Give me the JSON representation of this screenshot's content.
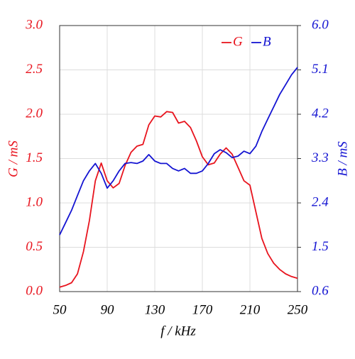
{
  "chart_data": {
    "type": "line",
    "xlabel": "f / kHz",
    "ylabel": "G / mS",
    "y2label": "B / mS",
    "x": [
      50,
      55,
      60,
      65,
      70,
      75,
      80,
      85,
      90,
      95,
      100,
      105,
      110,
      115,
      120,
      125,
      130,
      135,
      140,
      145,
      150,
      155,
      160,
      165,
      170,
      175,
      180,
      185,
      190,
      195,
      200,
      205,
      210,
      215,
      220,
      225,
      230,
      235,
      240,
      245,
      250
    ],
    "series": [
      {
        "name": "G",
        "color": "#e8141e",
        "axis": "y",
        "values": [
          0.05,
          0.07,
          0.1,
          0.2,
          0.45,
          0.8,
          1.25,
          1.45,
          1.25,
          1.17,
          1.22,
          1.42,
          1.57,
          1.64,
          1.66,
          1.88,
          1.98,
          1.97,
          2.03,
          2.02,
          1.9,
          1.92,
          1.85,
          1.7,
          1.52,
          1.43,
          1.45,
          1.55,
          1.62,
          1.55,
          1.4,
          1.25,
          1.2,
          0.9,
          0.6,
          0.43,
          0.32,
          0.25,
          0.2,
          0.17,
          0.15
        ]
      },
      {
        "name": "B",
        "color": "#1414d2",
        "axis": "y2",
        "values": [
          1.75,
          2.0,
          2.25,
          2.55,
          2.85,
          3.05,
          3.2,
          3.0,
          2.7,
          2.85,
          3.05,
          3.2,
          3.22,
          3.2,
          3.25,
          3.38,
          3.25,
          3.2,
          3.2,
          3.1,
          3.05,
          3.1,
          3.0,
          3.0,
          3.05,
          3.2,
          3.4,
          3.48,
          3.42,
          3.32,
          3.35,
          3.45,
          3.4,
          3.55,
          3.85,
          4.1,
          4.35,
          4.6,
          4.8,
          5.0,
          5.15
        ]
      }
    ],
    "xlim": [
      50,
      250
    ],
    "xticks": [
      50,
      90,
      130,
      170,
      210,
      250
    ],
    "ylim": [
      0,
      3
    ],
    "yticks": [
      {
        "value": 0,
        "label": "0.0"
      },
      0.5,
      {
        "value": 1,
        "label": "1.0"
      },
      1.5,
      {
        "value": 2,
        "label": "2.0"
      },
      2.5,
      {
        "value": 3,
        "label": "3.0"
      }
    ],
    "y2lim": [
      0.6,
      6
    ],
    "y2ticks": [
      0.6,
      1.5,
      2.4,
      3.3,
      4.2,
      5.1,
      {
        "value": 6,
        "label": "6.0"
      }
    ],
    "grid": true,
    "legend": "upper right"
  }
}
